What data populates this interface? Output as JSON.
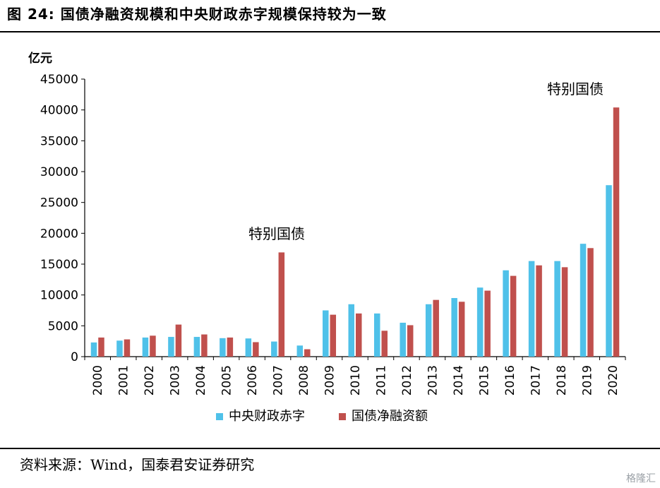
{
  "header": {
    "title": "图 24:  国债净融资规模和中央财政赤字规模保持较为一致"
  },
  "footer": {
    "source": "资料来源：Wind，国泰君安证券研究",
    "watermark": "格隆汇"
  },
  "chart_data": {
    "type": "bar",
    "ylabel": "亿元",
    "ylim": [
      0,
      45000
    ],
    "yticks": [
      0,
      5000,
      10000,
      15000,
      20000,
      25000,
      30000,
      35000,
      40000,
      45000
    ],
    "categories": [
      "2000",
      "2001",
      "2002",
      "2003",
      "2004",
      "2005",
      "2006",
      "2007",
      "2008",
      "2009",
      "2010",
      "2011",
      "2012",
      "2013",
      "2014",
      "2015",
      "2016",
      "2017",
      "2018",
      "2019",
      "2020"
    ],
    "series": [
      {
        "name": "中央财政赤字",
        "color": "#4fc1e9",
        "values": [
          2300,
          2600,
          3100,
          3200,
          3200,
          3000,
          2950,
          2450,
          1800,
          7500,
          8500,
          7000,
          5500,
          8500,
          9500,
          11200,
          14000,
          15500,
          15500,
          18300,
          27800
        ]
      },
      {
        "name": "国债净融资额",
        "color": "#c0504d",
        "values": [
          3100,
          2800,
          3400,
          5200,
          3600,
          3100,
          2350,
          16900,
          1200,
          6800,
          7000,
          4200,
          5100,
          9200,
          8900,
          10700,
          13100,
          14800,
          14500,
          17600,
          40400
        ]
      }
    ],
    "annotations": [
      {
        "text": "特别国债",
        "category": "2007"
      },
      {
        "text": "特别国债",
        "category": "2020"
      }
    ],
    "grid": false,
    "legend": "bottom"
  }
}
